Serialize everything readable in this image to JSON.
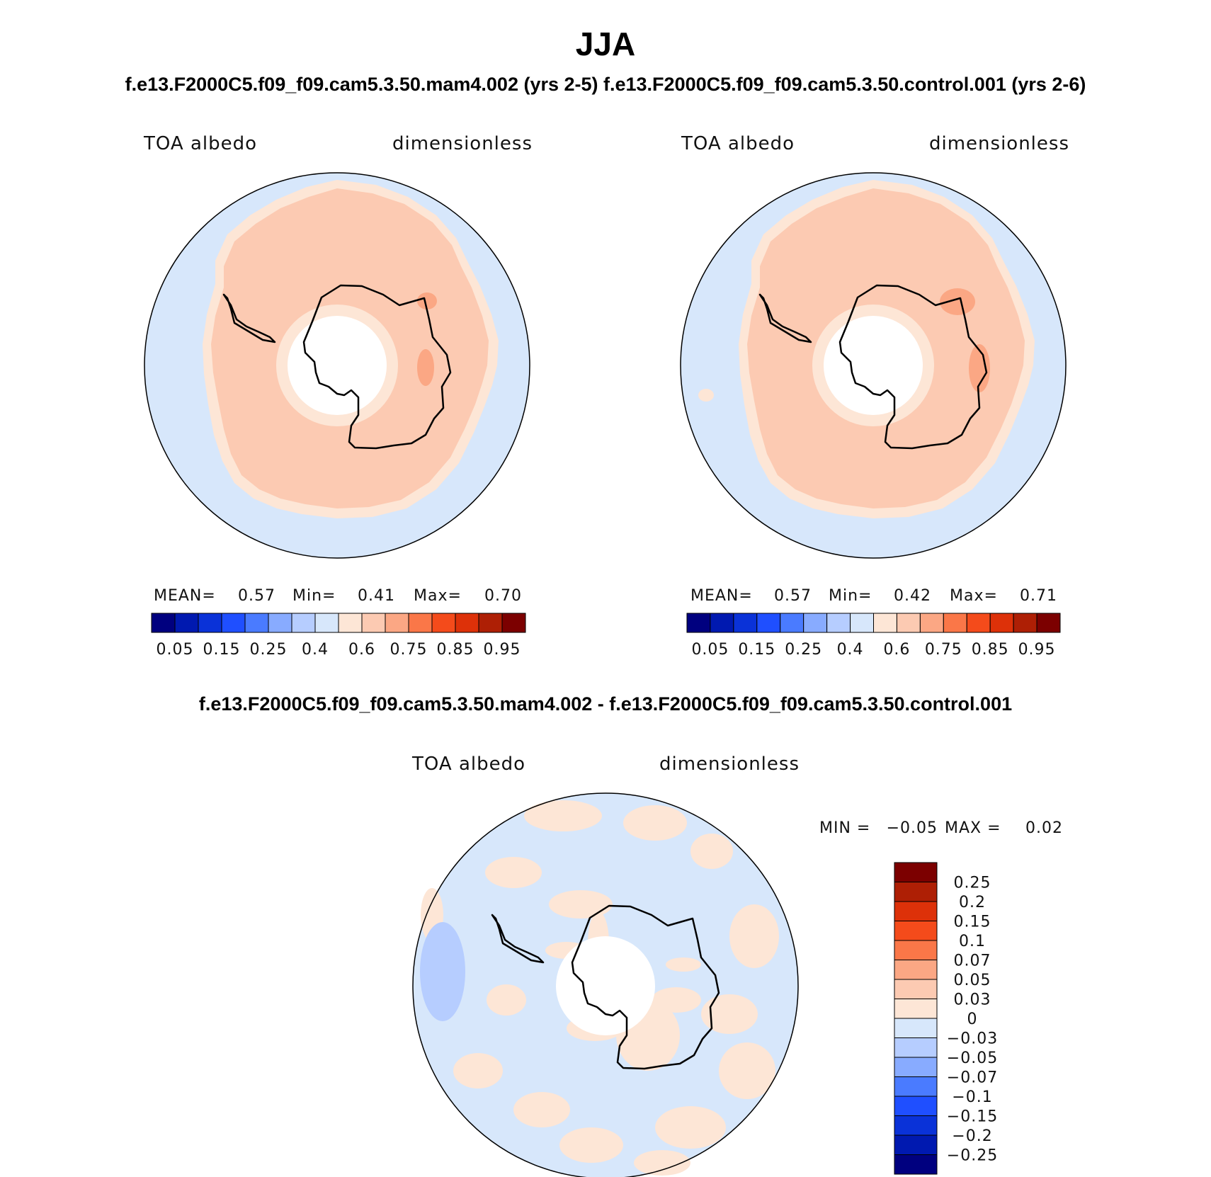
{
  "title": "JJA",
  "subtitle": "f.e13.F2000C5.f09_f09.cam5.3.50.mam4.002 (yrs 2-5) f.e13.F2000C5.f09_f09.cam5.3.50.control.001 (yrs 2-6)",
  "diff_title": "f.e13.F2000C5.f09_f09.cam5.3.50.mam4.002 - f.e13.F2000C5.f09_f09.cam5.3.50.control.001",
  "chart_data": [
    {
      "type": "heatmap",
      "projection": "south polar stereographic",
      "variable": "TOA albedo",
      "units": "dimensionless",
      "stats": {
        "mean_label": "MEAN=",
        "mean": "0.57",
        "min_label": "Min=",
        "min": "0.41",
        "max_label": "Max=",
        "max": "0.70"
      },
      "levels": [
        "0.05",
        "0.15",
        "0.25",
        "0.4",
        "0.6",
        "0.75",
        "0.85",
        "0.95"
      ],
      "colors": [
        "#00007f",
        "#0019b0",
        "#0a32d8",
        "#1f4fff",
        "#4a7bff",
        "#88abff",
        "#b6cdff",
        "#d7e7fb",
        "#fde6d6",
        "#fccab2",
        "#fba784",
        "#fa7748",
        "#f44b1b",
        "#dd3109",
        "#ae1f05",
        "#7c0000"
      ],
      "field": {
        "ocean": 0.5,
        "sea_ice": 0.55,
        "continent": 0.65,
        "high_spot": 0.7
      }
    },
    {
      "type": "heatmap",
      "projection": "south polar stereographic",
      "variable": "TOA albedo",
      "units": "dimensionless",
      "stats": {
        "mean_label": "MEAN=",
        "mean": "0.57",
        "min_label": "Min=",
        "min": "0.42",
        "max_label": "Max=",
        "max": "0.71"
      },
      "levels": [
        "0.05",
        "0.15",
        "0.25",
        "0.4",
        "0.6",
        "0.75",
        "0.85",
        "0.95"
      ],
      "colors": [
        "#00007f",
        "#0019b0",
        "#0a32d8",
        "#1f4fff",
        "#4a7bff",
        "#88abff",
        "#b6cdff",
        "#d7e7fb",
        "#fde6d6",
        "#fccab2",
        "#fba784",
        "#fa7748",
        "#f44b1b",
        "#dd3109",
        "#ae1f05",
        "#7c0000"
      ],
      "field": {
        "ocean": 0.5,
        "sea_ice": 0.55,
        "continent": 0.65,
        "high_spot": 0.7
      }
    },
    {
      "type": "heatmap",
      "projection": "south polar stereographic",
      "variable": "TOA albedo",
      "units": "dimensionless",
      "stats": {
        "min_label": "MIN =",
        "min": "−0.05",
        "max_label": "MAX =",
        "max": "0.02"
      },
      "levels": [
        "0.25",
        "0.2",
        "0.15",
        "0.1",
        "0.07",
        "0.05",
        "0.03",
        "0",
        "−0.03",
        "−0.05",
        "−0.07",
        "−0.1",
        "−0.15",
        "−0.2",
        "−0.25"
      ],
      "colors": [
        "#7c0000",
        "#ae1f05",
        "#dd3109",
        "#f44b1b",
        "#fa7748",
        "#fba784",
        "#fccab2",
        "#fde6d6",
        "#d7e7fb",
        "#b6cdff",
        "#88abff",
        "#4a7bff",
        "#1f4fff",
        "#0a32d8",
        "#0019b0",
        "#00007f"
      ],
      "field": {
        "background": -0.01,
        "positive_patches": 0.01,
        "negative_patch": -0.04
      }
    }
  ]
}
